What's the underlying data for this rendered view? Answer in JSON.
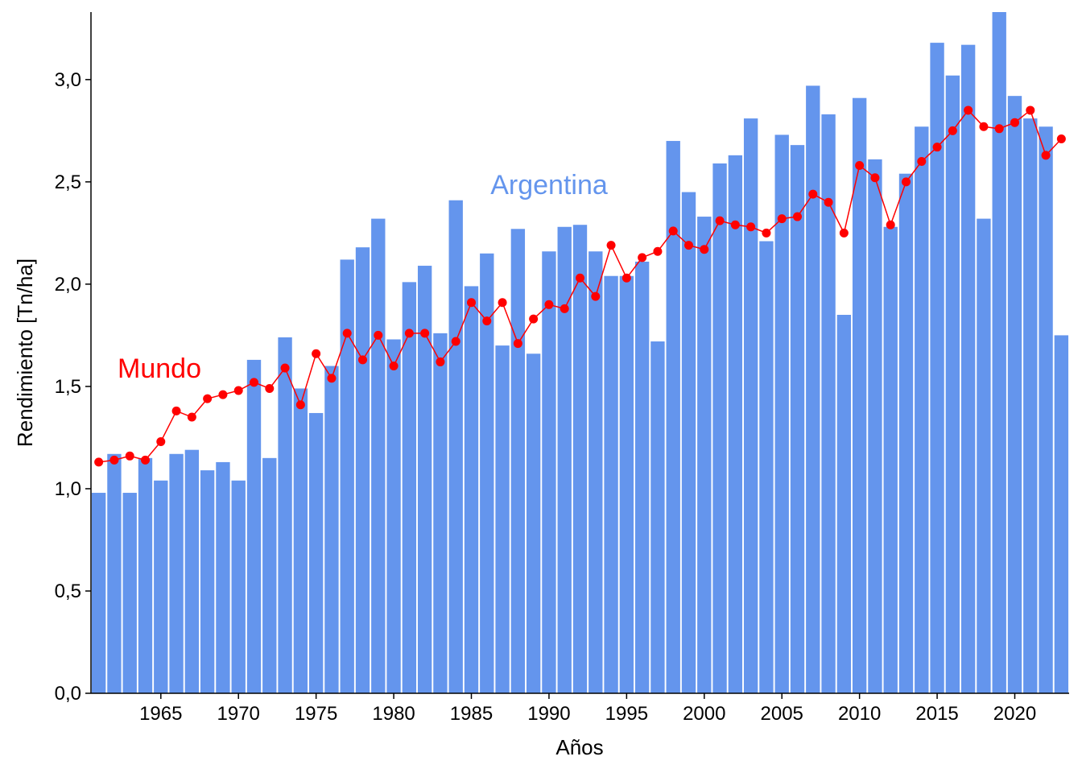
{
  "chart_data": {
    "type": "bar+line",
    "title": "",
    "xlabel": "Años",
    "ylabel": "Rendimiento [Tn/ha]",
    "ylim": [
      0,
      3.33
    ],
    "xlim": [
      1960.5,
      2023.5
    ],
    "yticks": [
      0.0,
      0.5,
      1.0,
      1.5,
      2.0,
      2.5,
      3.0
    ],
    "ytick_labels": [
      "0,0",
      "0,5",
      "1,0",
      "1,5",
      "2,0",
      "2,5",
      "3,0"
    ],
    "xticks": [
      1965,
      1970,
      1975,
      1980,
      1985,
      1990,
      1995,
      2000,
      2005,
      2010,
      2015,
      2020
    ],
    "xtick_labels": [
      "1965",
      "1970",
      "1975",
      "1980",
      "1985",
      "1990",
      "1995",
      "2000",
      "2005",
      "2010",
      "2015",
      "2020"
    ],
    "years": [
      1961,
      1962,
      1963,
      1964,
      1965,
      1966,
      1967,
      1968,
      1969,
      1970,
      1971,
      1972,
      1973,
      1974,
      1975,
      1976,
      1977,
      1978,
      1979,
      1980,
      1981,
      1982,
      1983,
      1984,
      1985,
      1986,
      1987,
      1988,
      1989,
      1990,
      1991,
      1992,
      1993,
      1994,
      1995,
      1996,
      1997,
      1998,
      1999,
      2000,
      2001,
      2002,
      2003,
      2004,
      2005,
      2006,
      2007,
      2008,
      2009,
      2010,
      2011,
      2012,
      2013,
      2014,
      2015,
      2016,
      2017,
      2018,
      2019,
      2020,
      2021,
      2022,
      2023
    ],
    "series": [
      {
        "name": "Argentina",
        "kind": "bar",
        "color": "#6495ed",
        "values": [
          0.98,
          1.17,
          0.98,
          1.15,
          1.04,
          1.17,
          1.19,
          1.09,
          1.13,
          1.04,
          1.63,
          1.15,
          1.74,
          1.49,
          1.37,
          1.6,
          2.12,
          2.18,
          2.32,
          1.73,
          2.01,
          2.09,
          1.76,
          2.41,
          1.99,
          2.15,
          1.7,
          2.27,
          1.66,
          2.16,
          2.28,
          2.29,
          2.16,
          2.04,
          2.04,
          2.11,
          1.72,
          2.7,
          2.45,
          2.33,
          2.59,
          2.63,
          2.81,
          2.21,
          2.73,
          2.68,
          2.97,
          2.83,
          1.85,
          2.91,
          2.61,
          2.28,
          2.54,
          2.77,
          3.18,
          3.02,
          3.17,
          2.32,
          3.35,
          2.92,
          2.81,
          2.77,
          1.75
        ]
      },
      {
        "name": "Mundo",
        "kind": "line",
        "color": "#ff0000",
        "values": [
          1.13,
          1.14,
          1.16,
          1.14,
          1.23,
          1.38,
          1.35,
          1.44,
          1.46,
          1.48,
          1.52,
          1.49,
          1.59,
          1.41,
          1.66,
          1.54,
          1.76,
          1.63,
          1.75,
          1.6,
          1.76,
          1.76,
          1.62,
          1.72,
          1.91,
          1.82,
          1.91,
          1.71,
          1.83,
          1.9,
          1.88,
          2.03,
          1.94,
          2.19,
          2.03,
          2.13,
          2.16,
          2.26,
          2.19,
          2.17,
          2.31,
          2.29,
          2.28,
          2.25,
          2.32,
          2.33,
          2.44,
          2.4,
          2.25,
          2.58,
          2.52,
          2.29,
          2.5,
          2.6,
          2.67,
          2.75,
          2.85,
          2.77,
          2.76,
          2.79,
          2.85,
          2.63,
          2.71
        ]
      }
    ],
    "annotations": [
      {
        "text": "Argentina",
        "series": "Argentina",
        "at_year": 1990,
        "at_value": 2.5,
        "color": "#6495ed"
      },
      {
        "text": "Mundo",
        "series": "Mundo",
        "at_year": 1965,
        "at_value": 1.6,
        "color": "#ff0000"
      }
    ]
  }
}
